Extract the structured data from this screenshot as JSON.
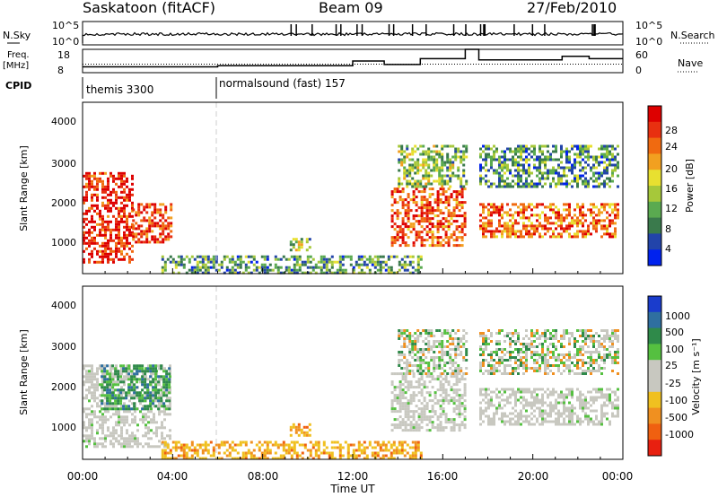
{
  "header": {
    "station": "Saskatoon (fitACF)",
    "beam": "Beam 09",
    "date": "27/Feb/2010"
  },
  "ts_panel": {
    "left_label": "N.Sky",
    "left_ticks": [
      "10^5",
      "10^0"
    ],
    "right_ticks": [
      "10^5",
      "10^0"
    ],
    "right_label": "N.Search"
  },
  "freq_panel": {
    "left_label_1": "Freq.",
    "left_label_2": "[MHz]",
    "left_ticks": [
      "18",
      "8"
    ],
    "right_ticks": [
      "60",
      "0"
    ],
    "right_label": "Nave"
  },
  "cpid": {
    "label": "CPID",
    "segments": [
      {
        "name": "themis 3300",
        "start_hour": 0
      },
      {
        "name": "normalsound (fast) 157",
        "start_hour": 6
      }
    ]
  },
  "power_panel": {
    "ylabel": "Slant Range [km]",
    "yticks": [
      "4000",
      "3000",
      "2000",
      "1000"
    ],
    "colorbar_label": "Power [dB]",
    "colorbar_ticks": [
      "28",
      "24",
      "20",
      "16",
      "12",
      "8",
      "4"
    ],
    "colors": [
      "#0022ee",
      "#2244aa",
      "#3a7a4c",
      "#5aaa50",
      "#a6c83a",
      "#e8e030",
      "#f2a020",
      "#f06a10",
      "#e83010",
      "#dd0000"
    ]
  },
  "velocity_panel": {
    "ylabel": "Slant Range [km]",
    "yticks": [
      "4000",
      "3000",
      "2000",
      "1000"
    ],
    "colorbar_label": "Velocity [m s⁻¹]",
    "colorbar_ticks": [
      "1000",
      "500",
      "100",
      "25",
      "-25",
      "-100",
      "-500",
      "-1000"
    ],
    "colors": [
      "#1a3ccc",
      "#2f6fa0",
      "#2f8a4a",
      "#55c040",
      "#c8c8c0",
      "#c8c8c0",
      "#f0c020",
      "#f09020",
      "#f06010",
      "#e82010"
    ]
  },
  "xaxis": {
    "label": "Time UT",
    "ticks": [
      "00:00",
      "04:00",
      "08:00",
      "12:00",
      "16:00",
      "20:00",
      "00:00"
    ]
  },
  "chart_data": {
    "type": "heatmap",
    "title": "Saskatoon (fitACF)",
    "x_unit": "hours UT",
    "xlim": [
      0,
      24
    ],
    "ylim_km": [
      180,
      4600
    ],
    "power_regions": [
      {
        "t0": 0.0,
        "t1": 2.2,
        "r0": 500,
        "r1": 2800,
        "level": 0.9
      },
      {
        "t0": 2.2,
        "t1": 3.9,
        "r0": 1000,
        "r1": 2000,
        "level": 0.85
      },
      {
        "t0": 3.5,
        "t1": 15.0,
        "r0": 200,
        "r1": 650,
        "level": 0.3
      },
      {
        "t0": 9.2,
        "t1": 10.1,
        "r0": 800,
        "r1": 1100,
        "level": 0.4
      },
      {
        "t0": 13.7,
        "t1": 17.0,
        "r0": 900,
        "r1": 2400,
        "level": 0.8
      },
      {
        "t0": 14.0,
        "t1": 17.0,
        "r0": 2400,
        "r1": 3500,
        "level": 0.4
      },
      {
        "t0": 17.5,
        "t1": 23.8,
        "r0": 1100,
        "r1": 2000,
        "level": 0.75
      },
      {
        "t0": 17.5,
        "t1": 23.8,
        "r0": 2400,
        "r1": 3500,
        "level": 0.3
      }
    ],
    "velocity_regions": [
      {
        "t0": 0.0,
        "t1": 3.9,
        "r0": 500,
        "r1": 2600,
        "class": "ground"
      },
      {
        "t0": 0.8,
        "t1": 3.9,
        "r0": 1500,
        "r1": 2600,
        "class": "positive"
      },
      {
        "t0": 3.5,
        "t1": 15.0,
        "r0": 200,
        "r1": 650,
        "class": "negative"
      },
      {
        "t0": 9.2,
        "t1": 10.1,
        "r0": 800,
        "r1": 1100,
        "class": "negative"
      },
      {
        "t0": 13.7,
        "t1": 17.0,
        "r0": 900,
        "r1": 2400,
        "class": "ground"
      },
      {
        "t0": 14.0,
        "t1": 17.0,
        "r0": 2400,
        "r1": 3500,
        "class": "mixed"
      },
      {
        "t0": 17.5,
        "t1": 23.8,
        "r0": 1100,
        "r1": 2000,
        "class": "ground"
      },
      {
        "t0": 17.5,
        "t1": 23.8,
        "r0": 2400,
        "r1": 3500,
        "class": "mixed"
      }
    ],
    "frequency_steps": [
      {
        "t0": 0,
        "t1": 6,
        "mhz": 10.5
      },
      {
        "t0": 6,
        "t1": 12,
        "mhz": 11
      },
      {
        "t0": 12,
        "t1": 13.4,
        "mhz": 13
      },
      {
        "t0": 13.4,
        "t1": 15,
        "mhz": 11.5
      },
      {
        "t0": 15,
        "t1": 17,
        "mhz": 14
      },
      {
        "t0": 17,
        "t1": 17.6,
        "mhz": 18
      },
      {
        "t0": 17.6,
        "t1": 21.3,
        "mhz": 13.5
      },
      {
        "t0": 21.3,
        "t1": 22.5,
        "mhz": 15
      },
      {
        "t0": 22.5,
        "t1": 24,
        "mhz": 14
      }
    ],
    "nave_level": 22,
    "gaps": [
      [
        17.0,
        17.5
      ]
    ]
  }
}
